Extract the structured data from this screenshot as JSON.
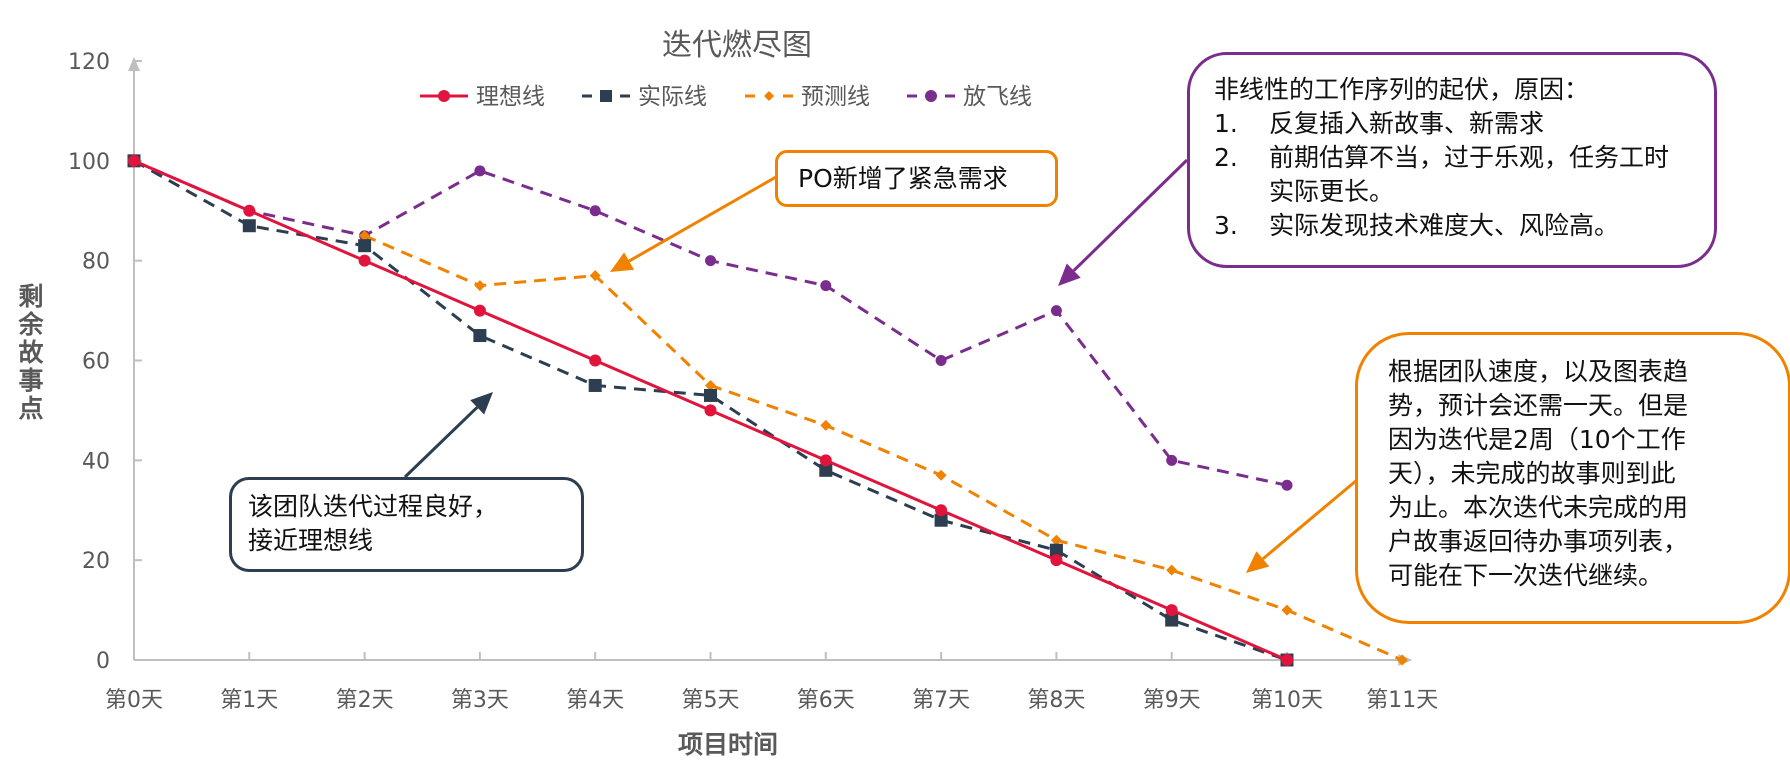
{
  "chart_data": {
    "type": "line",
    "title": "迭代燃尽图",
    "xlabel": "项目时间",
    "ylabel": "剩余故事点",
    "categories": [
      "第0天",
      "第1天",
      "第2天",
      "第3天",
      "第4天",
      "第5天",
      "第6天",
      "第7天",
      "第8天",
      "第9天",
      "第10天",
      "第11天"
    ],
    "ylim": [
      0,
      120
    ],
    "yticks": [
      0,
      20,
      40,
      60,
      80,
      100,
      120
    ],
    "grid": false,
    "legend_position": "top-center",
    "series": [
      {
        "name": "理想线",
        "color": "#e0143c",
        "style": "solid",
        "marker": "circle",
        "values": [
          100,
          90,
          80,
          70,
          60,
          50,
          40,
          30,
          20,
          10,
          0,
          null
        ]
      },
      {
        "name": "实际线",
        "color": "#2c3e50",
        "style": "dashed",
        "marker": "square",
        "values": [
          100,
          87,
          83,
          65,
          55,
          53,
          38,
          28,
          22,
          8,
          0,
          null
        ]
      },
      {
        "name": "预测线",
        "color": "#f08200",
        "style": "dashed",
        "marker": "diamond",
        "values": [
          null,
          null,
          85,
          75,
          77,
          55,
          47,
          37,
          24,
          18,
          10,
          0
        ]
      },
      {
        "name": "放飞线",
        "color": "#7b2d8e",
        "style": "dashed",
        "marker": "circle",
        "values": [
          100,
          90,
          85,
          98,
          90,
          80,
          75,
          60,
          70,
          40,
          35,
          null
        ]
      }
    ],
    "annotations": [
      {
        "id": "po",
        "text": "PO新增了紧急需求",
        "color": "#f08200",
        "points_to": {
          "x": "第4天",
          "y": 77
        }
      },
      {
        "id": "good",
        "lines": [
          "该团队迭代过程良好，",
          "接近理想线"
        ],
        "color": "#2c3e50",
        "points_to": {
          "x": "第3天",
          "y": 54
        }
      },
      {
        "id": "nonlinear",
        "heading": "非线性的工作序列的起伏，原因：",
        "items": [
          {
            "num": "1.",
            "text": "反复插入新故事、新需求"
          },
          {
            "num": "2.",
            "text": "前期估算不当，过于乐观，任务工时实际更长。"
          },
          {
            "num": "3.",
            "text": "实际发现技术难度大、风险高。"
          }
        ],
        "color": "#7b2d8e",
        "points_to": {
          "x": "第8天",
          "y": 76
        }
      },
      {
        "id": "forecast",
        "lines": [
          "根据团队速度，以及图表趋",
          "势，预计会还需一天。但是",
          "因为迭代是2周（10个工作",
          "天），未完成的故事则到此",
          "为止。本次迭代未完成的用",
          "户故事返回待办事项列表，",
          "可能在下一次迭代继续。"
        ],
        "color": "#f08200",
        "points_to": {
          "x": "第9天",
          "y": 18
        }
      }
    ]
  }
}
